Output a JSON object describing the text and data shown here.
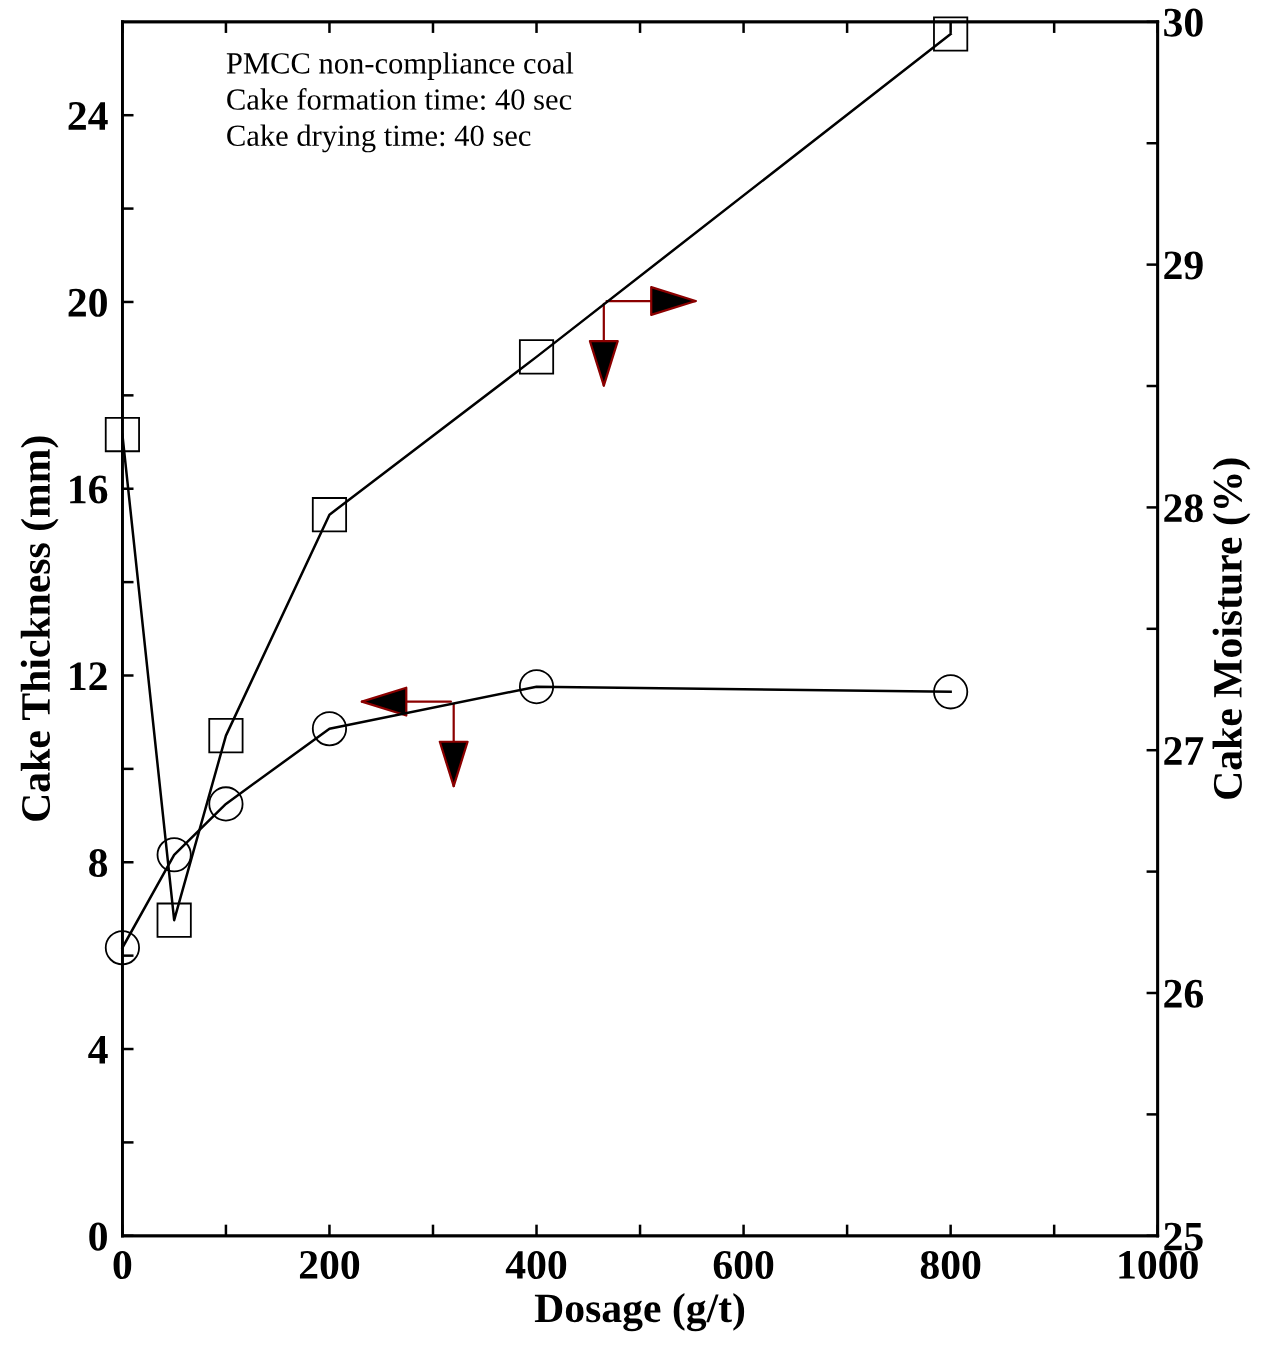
{
  "chart_data": {
    "type": "line",
    "xlabel": "Dosage (g/t)",
    "ylabel": "Cake Thickness (mm)",
    "y2label": "Cake Moisture (%)",
    "annotations": [
      "PMCC non-compliance coal\nCake formation time: 40 sec\nCake drying time: 40 sec"
    ],
    "x": [
      0,
      50,
      100,
      200,
      400,
      800
    ],
    "series": [
      {
        "color": "#000000",
        "marker": "circle",
        "values": [
          6.17,
          8.16,
          9.25,
          10.86,
          11.76,
          11.65
        ]
      },
      {
        "color": "#000000",
        "marker": "square",
        "axis": "y2",
        "values": [
          28.3,
          26.3,
          27.06,
          27.97,
          28.62,
          29.95
        ]
      }
    ],
    "xlim": [
      0,
      1000
    ],
    "ylim": [
      0,
      26
    ],
    "y2lim": [
      25,
      30
    ],
    "xticks": [
      0,
      {
        "value": 100,
        "label": null
      },
      200,
      {
        "value": 300,
        "label": null
      },
      400,
      {
        "value": 500,
        "label": null
      },
      600,
      {
        "value": 700,
        "label": null
      },
      800,
      {
        "value": 900,
        "label": null
      },
      1000
    ],
    "yticks": [
      0,
      {
        "value": 2,
        "label": null
      },
      4,
      {
        "value": 6,
        "label": null
      },
      8,
      {
        "value": 10,
        "label": null
      },
      12,
      {
        "value": 14,
        "label": null
      },
      16,
      {
        "value": 18,
        "label": null
      },
      20,
      {
        "value": 22,
        "label": null
      },
      24
    ],
    "y2ticks": [
      25,
      {
        "value": 25.5,
        "label": null
      },
      26,
      {
        "value": 26.5,
        "label": null
      },
      27,
      {
        "value": 27.5,
        "label": null
      },
      28,
      {
        "value": 28.5,
        "label": null
      },
      29,
      {
        "value": 29.5,
        "label": null
      },
      30
    ],
    "grid": false,
    "legend": false,
    "line_style": "solid"
  }
}
